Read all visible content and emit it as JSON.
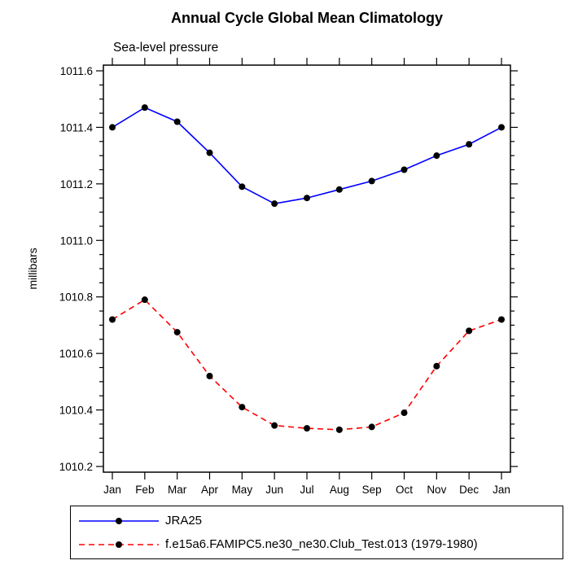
{
  "chart_data": {
    "type": "line",
    "title": "Annual Cycle Global Mean Climatology",
    "subtitle": "Sea-level pressure",
    "xlabel": "",
    "ylabel": "millibars",
    "categories": [
      "Jan",
      "Feb",
      "Mar",
      "Apr",
      "May",
      "Jun",
      "Jul",
      "Aug",
      "Sep",
      "Oct",
      "Nov",
      "Dec",
      "Jan"
    ],
    "ylim": [
      1010.2,
      1011.6
    ],
    "yticks": [
      1010.2,
      1010.4,
      1010.6,
      1010.8,
      1011.0,
      1011.2,
      1011.4,
      1011.6
    ],
    "ytick_labels": [
      "1010.2",
      "1010.4",
      "1010.6",
      "1010.8",
      "1011.0",
      "1011.2",
      "1011.4",
      "1011.6"
    ],
    "grid": false,
    "legend_position": "bottom",
    "marker_color": "#000000",
    "series": [
      {
        "name": "JRA25",
        "color": "#0000ff",
        "line_style": "solid",
        "marker": "circle",
        "marker_color": "#000000",
        "values": [
          1011.4,
          1011.47,
          1011.42,
          1011.31,
          1011.19,
          1011.13,
          1011.15,
          1011.18,
          1011.21,
          1011.25,
          1011.3,
          1011.34,
          1011.4
        ]
      },
      {
        "name": "f.e15a6.FAMIPC5.ne30_ne30.Club_Test.013 (1979-1980)",
        "color": "#ff0000",
        "line_style": "dashed",
        "marker": "circle",
        "marker_color": "#000000",
        "values": [
          1010.72,
          1010.79,
          1010.675,
          1010.52,
          1010.41,
          1010.345,
          1010.335,
          1010.33,
          1010.34,
          1010.39,
          1010.555,
          1010.68,
          1010.72
        ]
      }
    ]
  }
}
